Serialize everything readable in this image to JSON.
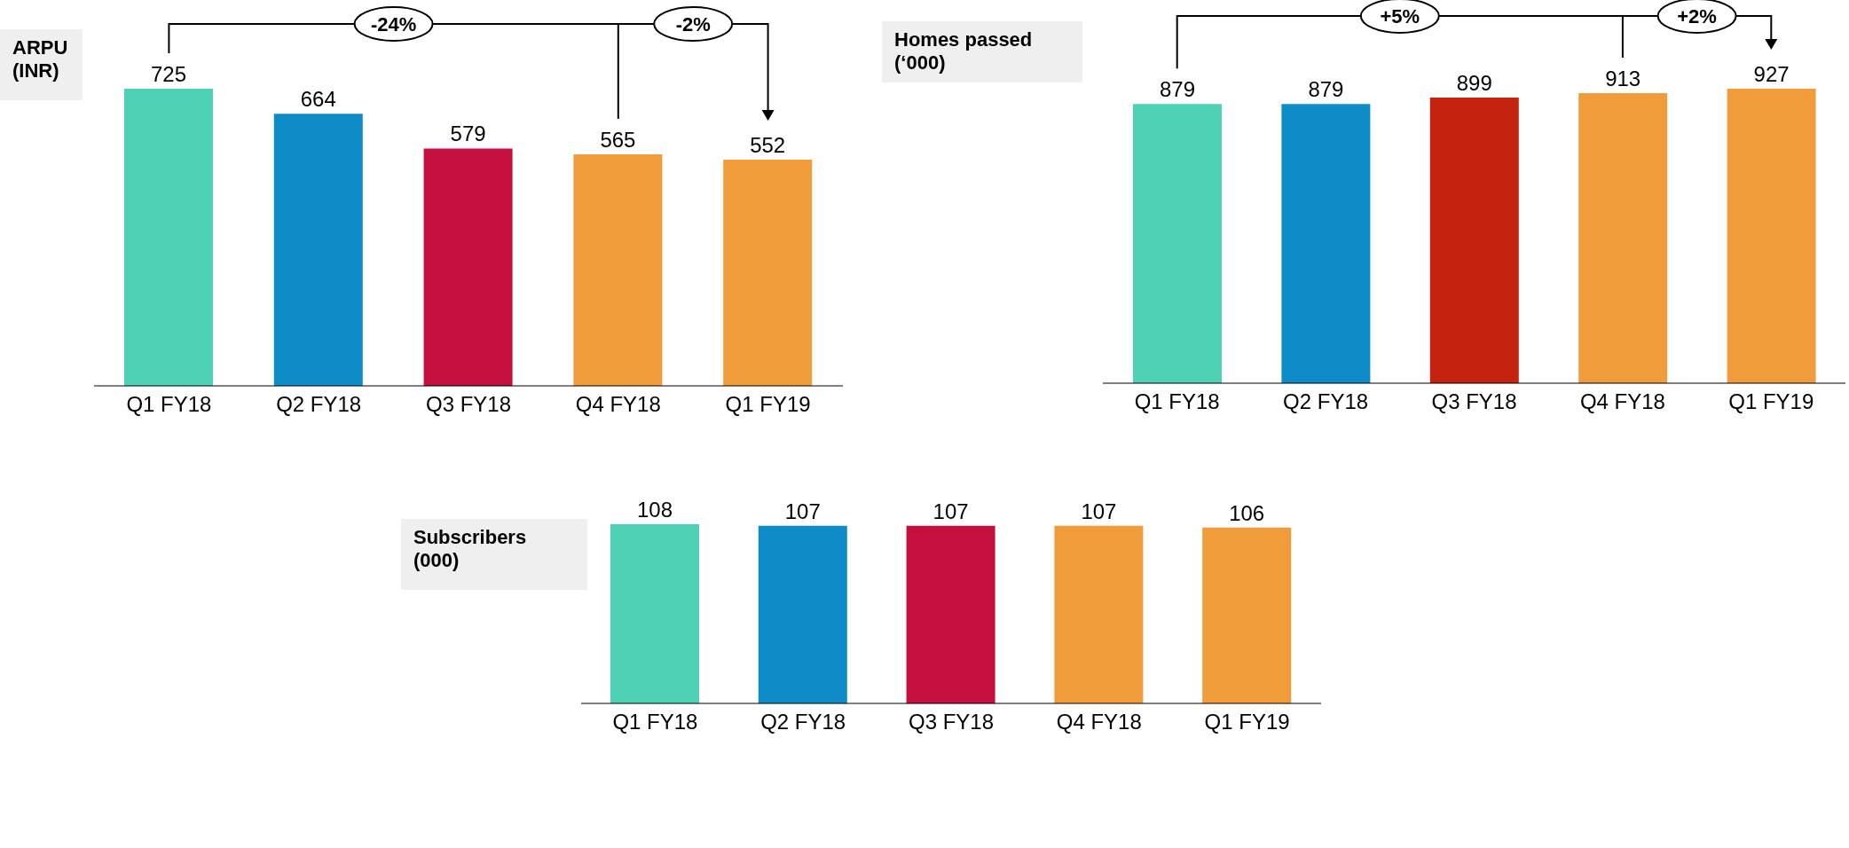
{
  "chart_data": [
    {
      "type": "bar",
      "title": "ARPU\n(INR)",
      "categories": [
        "Q1 FY18",
        "Q2 FY18",
        "Q3 FY18",
        "Q4 FY18",
        "Q1 FY19"
      ],
      "values": [
        725,
        664,
        579,
        565,
        552
      ],
      "colors": [
        "#4fd1b5",
        "#0e8cc8",
        "#c40f3f",
        "#f09c3a",
        "#f09c3a"
      ],
      "data_labels": true,
      "annotations": [
        "-24%",
        "-2%"
      ]
    },
    {
      "type": "bar",
      "title": "Homes passed\n(‘000)",
      "categories": [
        "Q1 FY18",
        "Q2 FY18",
        "Q3 FY18",
        "Q4 FY18",
        "Q1 FY19"
      ],
      "values": [
        879,
        879,
        899,
        913,
        927
      ],
      "colors": [
        "#4fd1b5",
        "#0e8cc8",
        "#c42310",
        "#f09c3a",
        "#f09c3a"
      ],
      "data_labels": true,
      "annotations": [
        "+5%",
        "+2%"
      ]
    },
    {
      "type": "bar",
      "title": "Subscribers\n(000)",
      "categories": [
        "Q1 FY18",
        "Q2 FY18",
        "Q3 FY18",
        "Q4 FY18",
        "Q1 FY19"
      ],
      "values": [
        108,
        107,
        107,
        107,
        106
      ],
      "colors": [
        "#4fd1b5",
        "#0e8cc8",
        "#c40f3f",
        "#f09c3a",
        "#f09c3a"
      ],
      "data_labels": true
    }
  ]
}
